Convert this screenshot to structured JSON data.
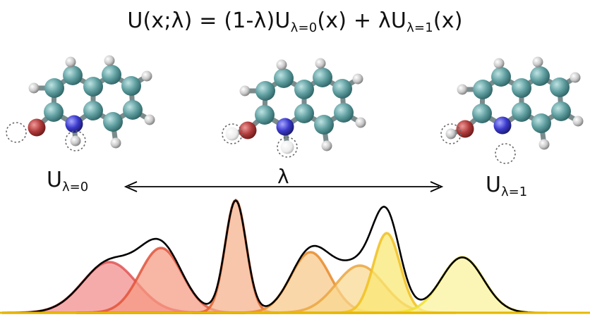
{
  "equation": {
    "lhs": "U(x;λ) = (1-λ)U",
    "sub0": "λ=0",
    "mid": "(x) + λU",
    "sub1": "λ=1",
    "end": "(x)"
  },
  "left_label": {
    "base": "U",
    "sub": "λ=0"
  },
  "right_label": {
    "base": "U",
    "sub": "λ=1"
  },
  "lambda_label": "λ",
  "colors": {
    "carbon": "#5f9ea0",
    "oxygen": "#b03a3a",
    "nitrogen": "#3a3acc",
    "hydrogen": "#c8c8c8",
    "envelope": "#000000",
    "baseline": "#e6b800"
  },
  "distributions": [
    {
      "color": "#f28a8a",
      "stroke": "#e05555"
    },
    {
      "color": "#f59a82",
      "stroke": "#e2543a"
    },
    {
      "color": "#f4b08a",
      "stroke": "#e0602a"
    },
    {
      "color": "#f6c888",
      "stroke": "#e88a2a"
    },
    {
      "color": "#f8d890",
      "stroke": "#eba640"
    },
    {
      "color": "#fae870",
      "stroke": "#f0c020"
    },
    {
      "color": "#fbf39a",
      "stroke": "#eedf30"
    }
  ]
}
